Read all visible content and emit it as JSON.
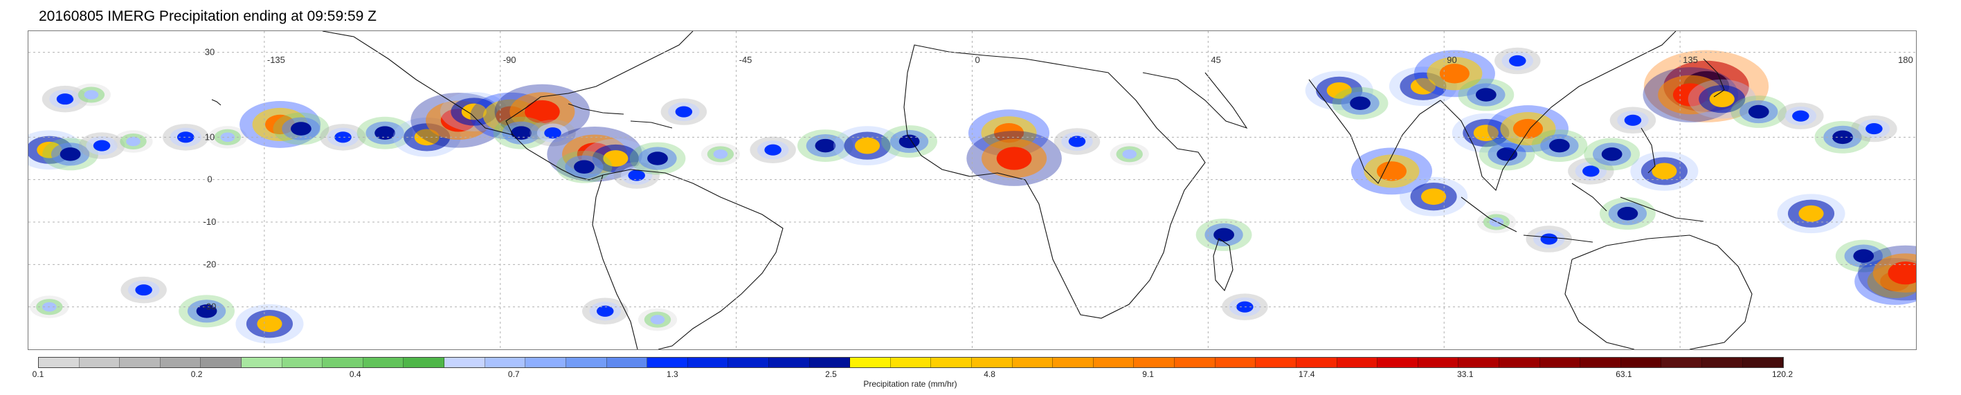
{
  "title": "20160805 IMERG Precipitation ending at 09:59:59 Z",
  "map": {
    "lon_range": [
      -180,
      180
    ],
    "lat_range": [
      -40,
      35
    ],
    "lat_labels": [
      {
        "lat": 30,
        "text": "30"
      },
      {
        "lat": 10,
        "text": "10"
      },
      {
        "lat": 0,
        "text": "0"
      },
      {
        "lat": -10,
        "text": "-10"
      },
      {
        "lat": -20,
        "text": "-20"
      },
      {
        "lat": -30,
        "text": "-30"
      }
    ],
    "lon_labels": [
      {
        "lon": -135,
        "text": "-135"
      },
      {
        "lon": -90,
        "text": "-90"
      },
      {
        "lon": -45,
        "text": "-45"
      },
      {
        "lon": 0,
        "text": "0"
      },
      {
        "lon": 45,
        "text": "45"
      },
      {
        "lon": 90,
        "text": "90"
      },
      {
        "lon": 135,
        "text": "135"
      },
      {
        "lon": 180,
        "text": "180"
      }
    ],
    "grid": true,
    "precip_cells": [
      {
        "lon": -173,
        "lat": 19,
        "rate": 1.3
      },
      {
        "lon": -168,
        "lat": 20,
        "rate": 0.7
      },
      {
        "lon": -176,
        "lat": 7,
        "rate": 4.8
      },
      {
        "lon": -172,
        "lat": 6,
        "rate": 2.5
      },
      {
        "lon": -166,
        "lat": 8,
        "rate": 1.3
      },
      {
        "lon": -160,
        "lat": 9,
        "rate": 0.7
      },
      {
        "lon": -150,
        "lat": 10,
        "rate": 1.3
      },
      {
        "lon": -142,
        "lat": 10,
        "rate": 0.7
      },
      {
        "lon": -132,
        "lat": 13,
        "rate": 9.1
      },
      {
        "lon": -128,
        "lat": 12,
        "rate": 2.5
      },
      {
        "lon": -120,
        "lat": 10,
        "rate": 1.3
      },
      {
        "lon": -112,
        "lat": 11,
        "rate": 2.5
      },
      {
        "lon": -104,
        "lat": 10,
        "rate": 4.8
      },
      {
        "lon": -98,
        "lat": 14,
        "rate": 17.4
      },
      {
        "lon": -95,
        "lat": 16,
        "rate": 4.8
      },
      {
        "lon": -88,
        "lat": 15,
        "rate": 9.1
      },
      {
        "lon": -82,
        "lat": 16,
        "rate": 17.4
      },
      {
        "lon": -86,
        "lat": 11,
        "rate": 2.5
      },
      {
        "lon": -80,
        "lat": 11,
        "rate": 1.3
      },
      {
        "lon": -72,
        "lat": 6,
        "rate": 17.4
      },
      {
        "lon": -68,
        "lat": 5,
        "rate": 4.8
      },
      {
        "lon": -74,
        "lat": 3,
        "rate": 2.5
      },
      {
        "lon": -64,
        "lat": 1,
        "rate": 1.3
      },
      {
        "lon": -60,
        "lat": 5,
        "rate": 2.5
      },
      {
        "lon": -55,
        "lat": 16,
        "rate": 1.3
      },
      {
        "lon": -48,
        "lat": 6,
        "rate": 0.7
      },
      {
        "lon": -38,
        "lat": 7,
        "rate": 1.3
      },
      {
        "lon": -28,
        "lat": 8,
        "rate": 2.5
      },
      {
        "lon": -20,
        "lat": 8,
        "rate": 4.8
      },
      {
        "lon": -12,
        "lat": 9,
        "rate": 2.5
      },
      {
        "lon": 7,
        "lat": 11,
        "rate": 9.1
      },
      {
        "lon": 8,
        "lat": 5,
        "rate": 17.4
      },
      {
        "lon": 20,
        "lat": 9,
        "rate": 1.3
      },
      {
        "lon": 30,
        "lat": 6,
        "rate": 0.7
      },
      {
        "lon": 48,
        "lat": -13,
        "rate": 2.5
      },
      {
        "lon": 52,
        "lat": -30,
        "rate": 1.3
      },
      {
        "lon": 70,
        "lat": 21,
        "rate": 4.8
      },
      {
        "lon": 74,
        "lat": 18,
        "rate": 2.5
      },
      {
        "lon": 86,
        "lat": 22,
        "rate": 4.8
      },
      {
        "lon": 92,
        "lat": 25,
        "rate": 9.1
      },
      {
        "lon": 98,
        "lat": 20,
        "rate": 2.5
      },
      {
        "lon": 104,
        "lat": 28,
        "rate": 1.3
      },
      {
        "lon": 80,
        "lat": 2,
        "rate": 9.1
      },
      {
        "lon": 88,
        "lat": -4,
        "rate": 4.8
      },
      {
        "lon": 98,
        "lat": 11,
        "rate": 4.8
      },
      {
        "lon": 102,
        "lat": 6,
        "rate": 2.5
      },
      {
        "lon": 106,
        "lat": 12,
        "rate": 9.1
      },
      {
        "lon": 112,
        "lat": 8,
        "rate": 2.5
      },
      {
        "lon": 118,
        "lat": 2,
        "rate": 1.3
      },
      {
        "lon": 122,
        "lat": 6,
        "rate": 2.5
      },
      {
        "lon": 126,
        "lat": 14,
        "rate": 1.3
      },
      {
        "lon": 132,
        "lat": 2,
        "rate": 4.8
      },
      {
        "lon": 140,
        "lat": 22,
        "rate": 63.1
      },
      {
        "lon": 137,
        "lat": 20,
        "rate": 17.4
      },
      {
        "lon": 143,
        "lat": 19,
        "rate": 4.8
      },
      {
        "lon": 150,
        "lat": 16,
        "rate": 2.5
      },
      {
        "lon": 158,
        "lat": 15,
        "rate": 1.3
      },
      {
        "lon": 166,
        "lat": 10,
        "rate": 2.5
      },
      {
        "lon": 172,
        "lat": 12,
        "rate": 1.3
      },
      {
        "lon": 160,
        "lat": -8,
        "rate": 4.8
      },
      {
        "lon": 170,
        "lat": -18,
        "rate": 2.5
      },
      {
        "lon": 176,
        "lat": -24,
        "rate": 9.1
      },
      {
        "lon": 178,
        "lat": -22,
        "rate": 17.4
      },
      {
        "lon": -158,
        "lat": -26,
        "rate": 1.3
      },
      {
        "lon": -146,
        "lat": -31,
        "rate": 2.5
      },
      {
        "lon": -134,
        "lat": -34,
        "rate": 4.8
      },
      {
        "lon": -176,
        "lat": -30,
        "rate": 0.7
      },
      {
        "lon": -70,
        "lat": -31,
        "rate": 1.3
      },
      {
        "lon": -60,
        "lat": -33,
        "rate": 0.7
      },
      {
        "lon": 100,
        "lat": -10,
        "rate": 0.7
      },
      {
        "lon": 110,
        "lat": -14,
        "rate": 1.3
      },
      {
        "lon": 125,
        "lat": -8,
        "rate": 2.5
      }
    ]
  },
  "colorbar": {
    "label": "Precipitation rate (mm/hr)",
    "tick_labels": [
      "0.1",
      "0.2",
      "0.4",
      "0.7",
      "1.3",
      "2.5",
      "4.8",
      "9.1",
      "17.4",
      "33.1",
      "63.1",
      "120.2"
    ],
    "band_colors": [
      "#d8d8d8",
      "#c8c8c8",
      "#b8b8b8",
      "#a8a8a8",
      "#999999",
      "#a8e6a0",
      "#8fdb87",
      "#78cf70",
      "#62c35b",
      "#4fb649",
      "#c6d4ff",
      "#aac2ff",
      "#8eafff",
      "#739cf7",
      "#5f89ef",
      "#0030ff",
      "#0028e6",
      "#0020cc",
      "#0018b3",
      "#001299",
      "#fff200",
      "#ffe100",
      "#ffcf00",
      "#ffbd00",
      "#ffaa00",
      "#ff9a00",
      "#ff8a00",
      "#ff7800",
      "#ff6600",
      "#ff5500",
      "#ff3b00",
      "#f72800",
      "#e81400",
      "#d60000",
      "#c40000",
      "#b00000",
      "#9c0000",
      "#880000",
      "#740000",
      "#600000",
      "#5a1010",
      "#4f0e0e",
      "#450c0c"
    ]
  }
}
